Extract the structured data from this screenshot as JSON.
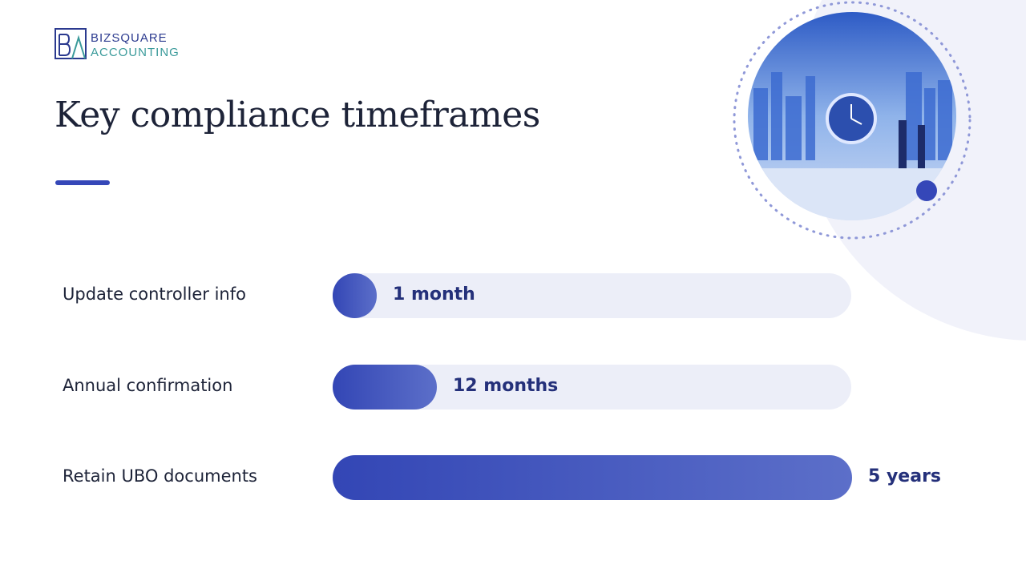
{
  "logo": {
    "line1": "BIZSQUARE",
    "line2": "ACCOUNTING"
  },
  "title": "Key compliance timeframes",
  "items": [
    {
      "label": "Update controller info",
      "duration": "1 month"
    },
    {
      "label": "Annual confirmation",
      "duration": "12 months"
    },
    {
      "label": "Retain UBO documents",
      "duration": "5 years"
    }
  ]
}
